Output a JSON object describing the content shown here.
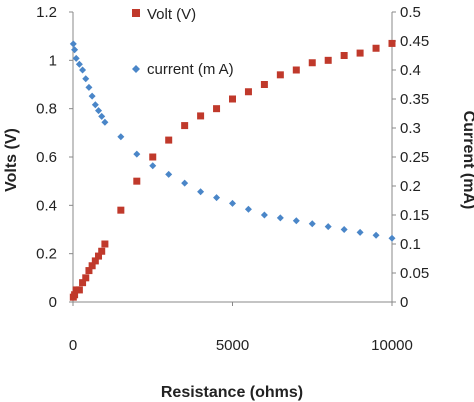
{
  "chart_data": {
    "type": "scatter",
    "xlabel": "Resistance (ohms)",
    "ylabel_left": "Volts (V)",
    "ylabel_right": "Current (mA)",
    "xlim": [
      0,
      10000
    ],
    "ylim_left": [
      0,
      1.2
    ],
    "ylim_right": [
      0,
      0.5
    ],
    "x_ticks": [
      "0",
      "5000",
      "10000"
    ],
    "y_left_ticks": [
      "0",
      "0.2",
      "0.4",
      "0.6",
      "0.8",
      "1",
      "1.2"
    ],
    "y_right_ticks": [
      "0",
      "0.05",
      "0.1",
      "0.15",
      "0.2",
      "0.25",
      "0.3",
      "0.35",
      "0.4",
      "0.45",
      "0.5"
    ],
    "grid": false,
    "legend_position": "top-center",
    "series": [
      {
        "name": "Volt (V)",
        "axis": "left",
        "marker": "square",
        "color": "#c0392b",
        "points": [
          [
            10,
            0.02
          ],
          [
            50,
            0.03
          ],
          [
            100,
            0.05
          ],
          [
            200,
            0.05
          ],
          [
            300,
            0.08
          ],
          [
            400,
            0.1
          ],
          [
            500,
            0.13
          ],
          [
            600,
            0.15
          ],
          [
            700,
            0.17
          ],
          [
            800,
            0.19
          ],
          [
            900,
            0.21
          ],
          [
            1000,
            0.24
          ],
          [
            1500,
            0.38
          ],
          [
            2000,
            0.5
          ],
          [
            2500,
            0.6
          ],
          [
            3000,
            0.67
          ],
          [
            3500,
            0.73
          ],
          [
            4000,
            0.77
          ],
          [
            4500,
            0.8
          ],
          [
            5000,
            0.84
          ],
          [
            5500,
            0.87
          ],
          [
            6000,
            0.9
          ],
          [
            6500,
            0.94
          ],
          [
            7000,
            0.96
          ],
          [
            7500,
            0.99
          ],
          [
            8000,
            1.0
          ],
          [
            8500,
            1.02
          ],
          [
            9000,
            1.03
          ],
          [
            9500,
            1.05
          ],
          [
            10000,
            1.07
          ]
        ]
      },
      {
        "name": "current (m A)",
        "axis": "right",
        "marker": "diamond",
        "color": "#4a86c8",
        "points": [
          [
            10,
            0.445
          ],
          [
            50,
            0.435
          ],
          [
            100,
            0.42
          ],
          [
            200,
            0.41
          ],
          [
            300,
            0.4
          ],
          [
            400,
            0.385
          ],
          [
            500,
            0.37
          ],
          [
            600,
            0.355
          ],
          [
            700,
            0.34
          ],
          [
            800,
            0.33
          ],
          [
            900,
            0.32
          ],
          [
            1000,
            0.31
          ],
          [
            1500,
            0.285
          ],
          [
            2000,
            0.255
          ],
          [
            2500,
            0.235
          ],
          [
            3000,
            0.22
          ],
          [
            3500,
            0.205
          ],
          [
            4000,
            0.19
          ],
          [
            4500,
            0.18
          ],
          [
            5000,
            0.17
          ],
          [
            5500,
            0.16
          ],
          [
            6000,
            0.15
          ],
          [
            6500,
            0.145
          ],
          [
            7000,
            0.14
          ],
          [
            7500,
            0.135
          ],
          [
            8000,
            0.13
          ],
          [
            8500,
            0.125
          ],
          [
            9000,
            0.12
          ],
          [
            9500,
            0.115
          ],
          [
            10000,
            0.11
          ]
        ]
      }
    ]
  }
}
